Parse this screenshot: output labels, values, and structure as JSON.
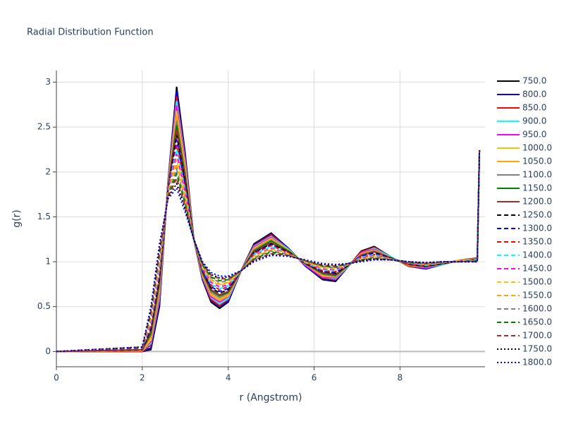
{
  "chart_data": {
    "type": "line",
    "title": "Radial Distribution Function",
    "x_label": "r (Angstrom)",
    "y_label": "g(r)",
    "xlim": [
      0,
      9.98
    ],
    "ylim": [
      -0.17,
      3.13
    ],
    "xticks": [
      0,
      2,
      4,
      6,
      8
    ],
    "yticks": [
      0,
      0.5,
      1,
      1.5,
      2,
      2.5,
      3
    ],
    "grid": true,
    "legend": "right",
    "x": [
      0,
      2.0,
      2.2,
      2.4,
      2.6,
      2.8,
      3.0,
      3.2,
      3.4,
      3.6,
      3.8,
      4.0,
      4.3,
      4.6,
      5.0,
      5.4,
      5.8,
      6.2,
      6.5,
      6.8,
      7.1,
      7.4,
      7.8,
      8.2,
      8.6,
      9.0,
      9.4,
      9.8,
      9.85
    ],
    "series": [
      {
        "name": "750.0",
        "color": "#000000",
        "dash": "solid",
        "values": [
          0,
          0,
          0.02,
          0.5,
          1.9,
          2.95,
          2.2,
          1.25,
          0.8,
          0.55,
          0.48,
          0.55,
          0.9,
          1.2,
          1.32,
          1.15,
          0.95,
          0.8,
          0.78,
          0.95,
          1.12,
          1.17,
          1.05,
          0.95,
          0.92,
          0.97,
          1.02,
          1.04,
          2.24
        ]
      },
      {
        "name": "800.0",
        "color": "#0000ff",
        "dash": "solid",
        "values": [
          0,
          0,
          0.04,
          0.53,
          1.89,
          2.9,
          2.17,
          1.25,
          0.81,
          0.57,
          0.5,
          0.56,
          0.9,
          1.19,
          1.31,
          1.15,
          0.95,
          0.81,
          0.79,
          0.95,
          1.11,
          1.16,
          1.05,
          0.95,
          0.92,
          0.97,
          1.02,
          1.04,
          2.24
        ]
      },
      {
        "name": "850.0",
        "color": "#ff0000",
        "dash": "solid",
        "values": [
          0,
          0,
          0.07,
          0.57,
          1.88,
          2.84,
          2.14,
          1.25,
          0.82,
          0.58,
          0.51,
          0.58,
          0.9,
          1.18,
          1.3,
          1.14,
          0.96,
          0.82,
          0.8,
          0.95,
          1.11,
          1.16,
          1.05,
          0.95,
          0.93,
          0.97,
          1.02,
          1.04,
          2.24
        ]
      },
      {
        "name": "900.0",
        "color": "#00ffff",
        "dash": "solid",
        "values": [
          0,
          0.01,
          0.09,
          0.6,
          1.87,
          2.79,
          2.11,
          1.25,
          0.83,
          0.6,
          0.53,
          0.59,
          0.9,
          1.17,
          1.28,
          1.14,
          0.96,
          0.83,
          0.81,
          0.95,
          1.1,
          1.15,
          1.05,
          0.96,
          0.93,
          0.97,
          1.02,
          1.03,
          2.24
        ]
      },
      {
        "name": "950.0",
        "color": "#ff00ff",
        "dash": "solid",
        "values": [
          0,
          0.01,
          0.11,
          0.63,
          1.86,
          2.74,
          2.08,
          1.25,
          0.84,
          0.61,
          0.55,
          0.61,
          0.9,
          1.16,
          1.27,
          1.13,
          0.96,
          0.83,
          0.82,
          0.96,
          1.1,
          1.14,
          1.04,
          0.96,
          0.93,
          0.98,
          1.02,
          1.03,
          2.24
        ]
      },
      {
        "name": "1000.0",
        "color": "#ffc000",
        "dash": "solid",
        "values": [
          0,
          0.01,
          0.13,
          0.67,
          1.85,
          2.68,
          2.05,
          1.25,
          0.85,
          0.63,
          0.57,
          0.62,
          0.9,
          1.15,
          1.26,
          1.13,
          0.97,
          0.84,
          0.83,
          0.96,
          1.09,
          1.13,
          1.04,
          0.96,
          0.94,
          0.98,
          1.02,
          1.03,
          2.24
        ]
      },
      {
        "name": "1050.0",
        "color": "#ffa500",
        "dash": "solid",
        "values": [
          0,
          0.01,
          0.16,
          0.7,
          1.84,
          2.63,
          2.01,
          1.25,
          0.86,
          0.64,
          0.58,
          0.63,
          0.9,
          1.14,
          1.25,
          1.12,
          0.97,
          0.85,
          0.83,
          0.96,
          1.09,
          1.13,
          1.04,
          0.96,
          0.94,
          0.98,
          1.01,
          1.03,
          2.24
        ]
      },
      {
        "name": "1100.0",
        "color": "#808080",
        "dash": "solid",
        "values": [
          0,
          0.02,
          0.18,
          0.73,
          1.83,
          2.57,
          1.98,
          1.25,
          0.87,
          0.66,
          0.6,
          0.65,
          0.9,
          1.13,
          1.24,
          1.12,
          0.97,
          0.86,
          0.84,
          0.96,
          1.08,
          1.12,
          1.04,
          0.97,
          0.94,
          0.98,
          1.01,
          1.03,
          2.24
        ]
      },
      {
        "name": "1150.0",
        "color": "#008000",
        "dash": "solid",
        "values": [
          0,
          0.02,
          0.2,
          0.77,
          1.82,
          2.52,
          1.95,
          1.25,
          0.88,
          0.68,
          0.62,
          0.66,
          0.9,
          1.12,
          1.23,
          1.12,
          0.98,
          0.87,
          0.85,
          0.96,
          1.07,
          1.11,
          1.04,
          0.97,
          0.95,
          0.98,
          1.01,
          1.02,
          2.24
        ]
      },
      {
        "name": "1200.0",
        "color": "#a52a2a",
        "dash": "solid",
        "values": [
          0,
          0.02,
          0.23,
          0.8,
          1.81,
          2.47,
          1.92,
          1.25,
          0.89,
          0.69,
          0.63,
          0.67,
          0.9,
          1.11,
          1.21,
          1.11,
          0.98,
          0.88,
          0.86,
          0.96,
          1.07,
          1.11,
          1.04,
          0.97,
          0.95,
          0.98,
          1.01,
          1.02,
          2.24
        ]
      },
      {
        "name": "1250.0",
        "color": "#000000",
        "dash": "dash",
        "values": [
          0,
          0.02,
          0.25,
          0.83,
          1.8,
          2.41,
          1.89,
          1.25,
          0.9,
          0.71,
          0.65,
          0.69,
          0.9,
          1.1,
          1.2,
          1.11,
          0.98,
          0.89,
          0.87,
          0.96,
          1.06,
          1.1,
          1.04,
          0.97,
          0.95,
          0.98,
          1.01,
          1.02,
          2.24
        ]
      },
      {
        "name": "1300.0",
        "color": "#0000ff",
        "dash": "dash",
        "values": [
          0,
          0.03,
          0.27,
          0.87,
          1.8,
          2.36,
          1.86,
          1.25,
          0.9,
          0.72,
          0.67,
          0.7,
          0.9,
          1.1,
          1.19,
          1.1,
          0.99,
          0.89,
          0.88,
          0.97,
          1.06,
          1.09,
          1.03,
          0.98,
          0.96,
          0.99,
          1.01,
          1.02,
          2.24
        ]
      },
      {
        "name": "1350.0",
        "color": "#ff0000",
        "dash": "dash",
        "values": [
          0,
          0.03,
          0.29,
          0.9,
          1.79,
          2.3,
          1.83,
          1.25,
          0.91,
          0.74,
          0.69,
          0.72,
          0.9,
          1.09,
          1.18,
          1.1,
          0.99,
          0.9,
          0.89,
          0.97,
          1.05,
          1.08,
          1.03,
          0.98,
          0.96,
          0.99,
          1.01,
          1.02,
          2.24
        ]
      },
      {
        "name": "1400.0",
        "color": "#00ffff",
        "dash": "dash",
        "values": [
          0,
          0.03,
          0.32,
          0.93,
          1.78,
          2.25,
          1.8,
          1.25,
          0.92,
          0.75,
          0.7,
          0.73,
          0.9,
          1.08,
          1.17,
          1.09,
          0.99,
          0.91,
          0.9,
          0.97,
          1.05,
          1.08,
          1.03,
          0.98,
          0.96,
          0.99,
          1.01,
          1.02,
          2.24
        ]
      },
      {
        "name": "1450.0",
        "color": "#ff00ff",
        "dash": "dash",
        "values": [
          0,
          0.03,
          0.34,
          0.97,
          1.77,
          2.2,
          1.77,
          1.25,
          0.93,
          0.77,
          0.72,
          0.74,
          0.9,
          1.07,
          1.15,
          1.09,
          1.0,
          0.92,
          0.91,
          0.97,
          1.04,
          1.07,
          1.03,
          0.98,
          0.97,
          0.99,
          1.01,
          1.01,
          2.24
        ]
      },
      {
        "name": "1500.0",
        "color": "#ffc000",
        "dash": "dash",
        "values": [
          0,
          0.04,
          0.36,
          1.0,
          1.76,
          2.14,
          1.74,
          1.25,
          0.94,
          0.79,
          0.74,
          0.76,
          0.9,
          1.06,
          1.14,
          1.09,
          1.0,
          0.93,
          0.92,
          0.97,
          1.03,
          1.06,
          1.03,
          0.99,
          0.97,
          0.99,
          1.01,
          1.01,
          2.24
        ]
      },
      {
        "name": "1550.0",
        "color": "#ffa500",
        "dash": "dash",
        "values": [
          0,
          0.04,
          0.39,
          1.03,
          1.75,
          2.09,
          1.7,
          1.25,
          0.95,
          0.8,
          0.75,
          0.77,
          0.9,
          1.05,
          1.13,
          1.08,
          1.0,
          0.94,
          0.93,
          0.97,
          1.03,
          1.06,
          1.03,
          0.99,
          0.97,
          0.99,
          1.0,
          1.01,
          2.24
        ]
      },
      {
        "name": "1600.0",
        "color": "#808080",
        "dash": "dash",
        "values": [
          0,
          0.04,
          0.41,
          1.07,
          1.74,
          2.03,
          1.67,
          1.25,
          0.96,
          0.82,
          0.77,
          0.79,
          0.9,
          1.04,
          1.12,
          1.08,
          1.01,
          0.95,
          0.93,
          0.97,
          1.02,
          1.05,
          1.03,
          0.99,
          0.98,
          0.99,
          1.0,
          1.01,
          2.24
        ]
      },
      {
        "name": "1650.0",
        "color": "#008000",
        "dash": "dash",
        "values": [
          0,
          0.04,
          0.43,
          1.1,
          1.73,
          1.98,
          1.64,
          1.25,
          0.97,
          0.83,
          0.79,
          0.8,
          0.9,
          1.03,
          1.11,
          1.07,
          1.01,
          0.95,
          0.94,
          0.98,
          1.02,
          1.04,
          1.02,
          0.99,
          0.98,
          1.0,
          1.0,
          1.01,
          2.24
        ]
      },
      {
        "name": "1700.0",
        "color": "#a52a2a",
        "dash": "dash",
        "values": [
          0,
          0.05,
          0.45,
          1.13,
          1.72,
          1.93,
          1.61,
          1.25,
          0.98,
          0.85,
          0.81,
          0.81,
          0.9,
          1.02,
          1.09,
          1.07,
          1.01,
          0.96,
          0.95,
          0.98,
          1.01,
          1.03,
          1.02,
          1.0,
          0.98,
          1.0,
          1.0,
          1.0,
          2.24
        ]
      },
      {
        "name": "1750.0",
        "color": "#000000",
        "dash": "dot",
        "values": [
          0,
          0.05,
          0.48,
          1.17,
          1.71,
          1.87,
          1.58,
          1.25,
          0.99,
          0.86,
          0.82,
          0.83,
          0.9,
          1.01,
          1.08,
          1.06,
          1.02,
          0.97,
          0.96,
          0.98,
          1.01,
          1.03,
          1.02,
          1.0,
          0.99,
          1.0,
          1.0,
          1.0,
          2.24
        ]
      },
      {
        "name": "1800.0",
        "color": "#0000ff",
        "dash": "dot",
        "values": [
          0,
          0.05,
          0.5,
          1.2,
          1.7,
          1.82,
          1.55,
          1.25,
          1.0,
          0.88,
          0.84,
          0.84,
          0.9,
          1.0,
          1.07,
          1.06,
          1.02,
          0.98,
          0.97,
          0.98,
          1.0,
          1.02,
          1.02,
          1.0,
          0.99,
          1.0,
          1.0,
          1.0,
          2.24
        ]
      }
    ]
  }
}
